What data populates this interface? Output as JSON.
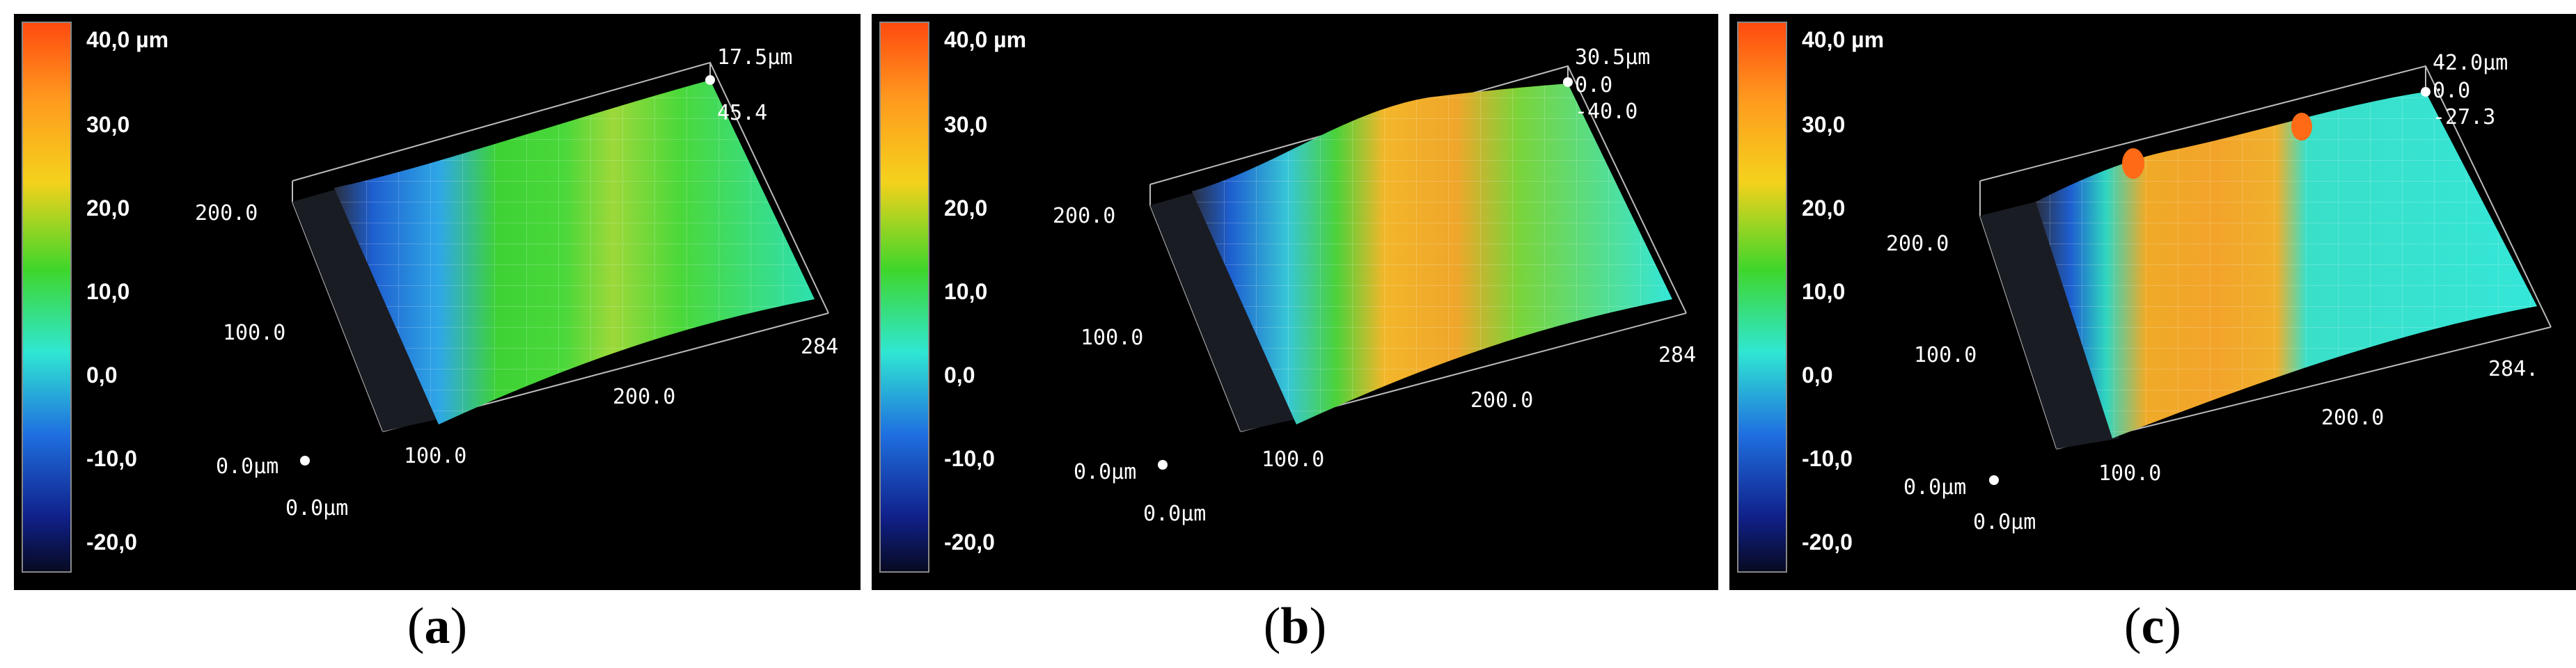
{
  "colorbar": {
    "ticks": [
      "40,0 µm",
      "30,0",
      "20,0",
      "10,0",
      "0,0",
      "-10,0",
      "-20,0"
    ],
    "colors": [
      "#ff4a10",
      "#ff9a1e",
      "#f4d21c",
      "#3fd62a",
      "#2fe7d2",
      "#1f6fe0",
      "#10208a",
      "#070a20"
    ]
  },
  "panels": [
    {
      "caption_letter": "a",
      "axis": {
        "z_top": "17.5µm",
        "z_mid": "45.4",
        "z_extra": "",
        "y_200": "200.0",
        "y_100": "100.0",
        "origin_y": "0.0µm",
        "origin_x": "0.0µm",
        "x_100": "100.0",
        "x_200": "200.0",
        "x_end": "284"
      },
      "surface_colors": [
        "#2a2f40",
        "#1e5fd0",
        "#2fa8e6",
        "#3ed235",
        "#4ad83a",
        "#9dd83a",
        "#4ad83a",
        "#2ee0b0"
      ]
    },
    {
      "caption_letter": "b",
      "axis": {
        "z_top": "30.5µm",
        "z_mid": "0.0",
        "z_extra": "-40.0",
        "y_200": "200.0",
        "y_100": "100.0",
        "origin_y": "0.0µm",
        "origin_x": "0.0µm",
        "x_100": "100.0",
        "x_200": "200.0",
        "x_end": "284"
      },
      "surface_colors": [
        "#2a2f40",
        "#1e5fd0",
        "#37c7d6",
        "#4bd23a",
        "#f2b62a",
        "#f0a62a",
        "#7ad43a",
        "#34e6d8"
      ]
    },
    {
      "caption_letter": "c",
      "axis": {
        "z_top": "42.0µm",
        "z_mid": "0.0",
        "z_extra": "-27.3",
        "y_200": "200.0",
        "y_100": "100.0",
        "origin_y": "0.0µm",
        "origin_x": "0.0µm",
        "x_100": "100.0",
        "x_200": "200.0",
        "x_end": "284."
      },
      "surface_colors": [
        "#2a2f40",
        "#1e5fd0",
        "#2fd6c0",
        "#f0aa28",
        "#f2a42a",
        "#f0b02c",
        "#3adfc8",
        "#34e6d8"
      ]
    }
  ]
}
